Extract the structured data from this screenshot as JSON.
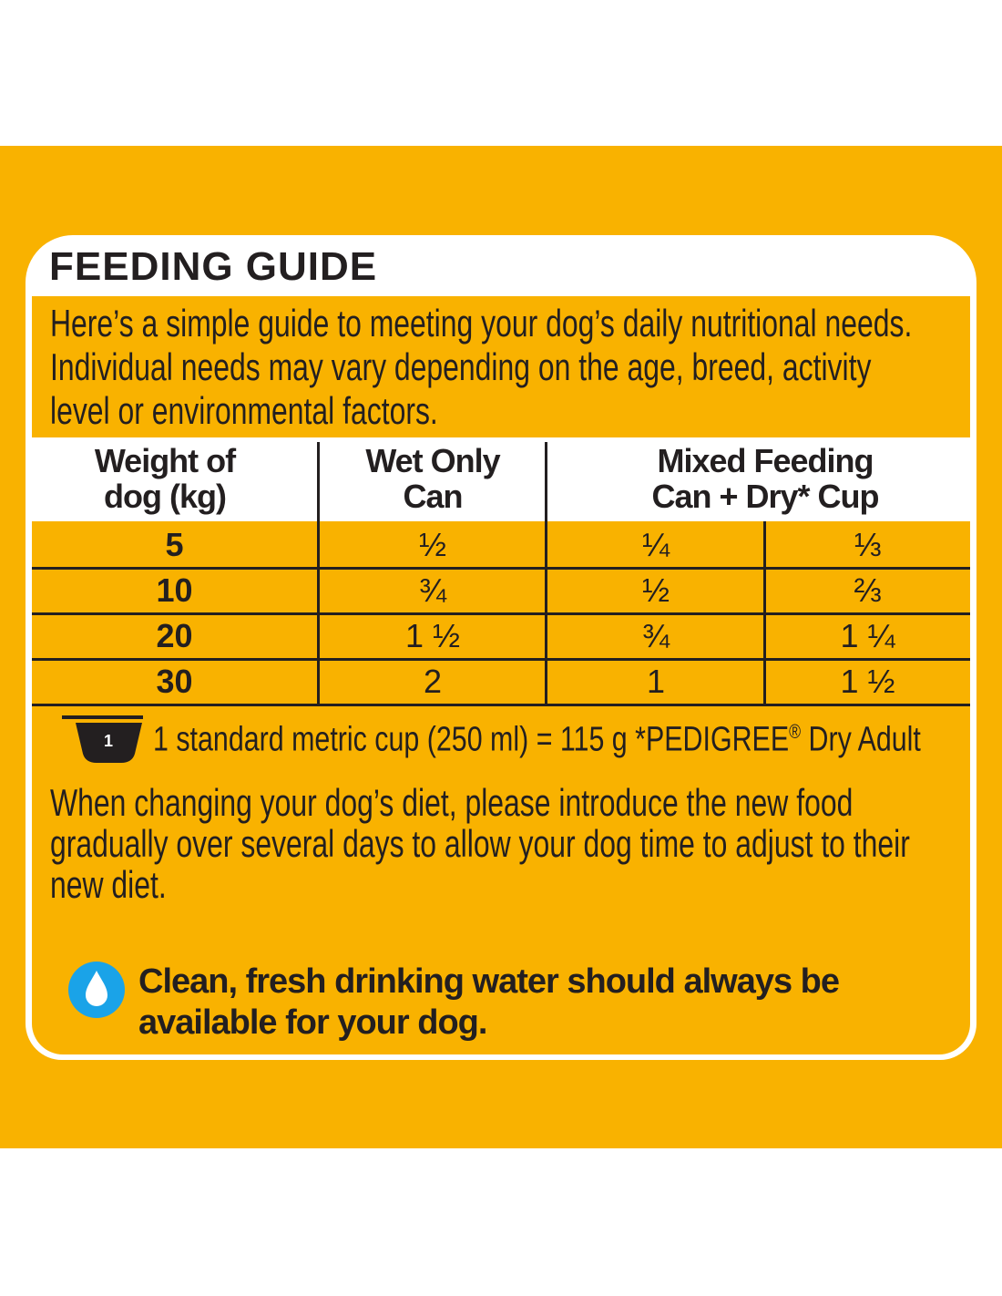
{
  "title": "FEEDING GUIDE",
  "intro_lines": [
    "Here’s a simple guide to meeting your dog’s daily nutritional needs.",
    "Individual needs may vary depending on the age, breed, activity",
    "level or environmental factors."
  ],
  "table": {
    "headers": [
      {
        "line1": "Weight of",
        "line2": "dog (kg)"
      },
      {
        "line1": "Wet Only",
        "line2": "Can"
      },
      {
        "line1": "Mixed Feeding",
        "line2": "Can + Dry* Cup"
      }
    ],
    "rows": [
      {
        "weight": "5",
        "wet": "½",
        "mixed_can": "¼",
        "mixed_cup": "⅓"
      },
      {
        "weight": "10",
        "wet": "¾",
        "mixed_can": "½",
        "mixed_cup": "⅔"
      },
      {
        "weight": "20",
        "wet": "1 ½",
        "mixed_can": "¾",
        "mixed_cup": "1 ¼"
      },
      {
        "weight": "30",
        "wet": "2",
        "mixed_can": "1",
        "mixed_cup": "1 ½"
      }
    ]
  },
  "cup_note": {
    "icon_label": "1",
    "text_before": "1 standard metric cup (250 ml) = 115 g *PEDIGREE",
    "registered": "®",
    "text_after": " Dry Adult"
  },
  "diet_lines": [
    "When changing your dog’s diet, please introduce the new food",
    "gradually over several days to allow your dog time to adjust to their",
    "new diet."
  ],
  "water_lines": [
    "Clean, fresh drinking water should always be",
    "available for your dog."
  ],
  "colors": {
    "brand_yellow": "#f9b200",
    "ink": "#231f20",
    "water_blue": "#1aa3e8"
  }
}
